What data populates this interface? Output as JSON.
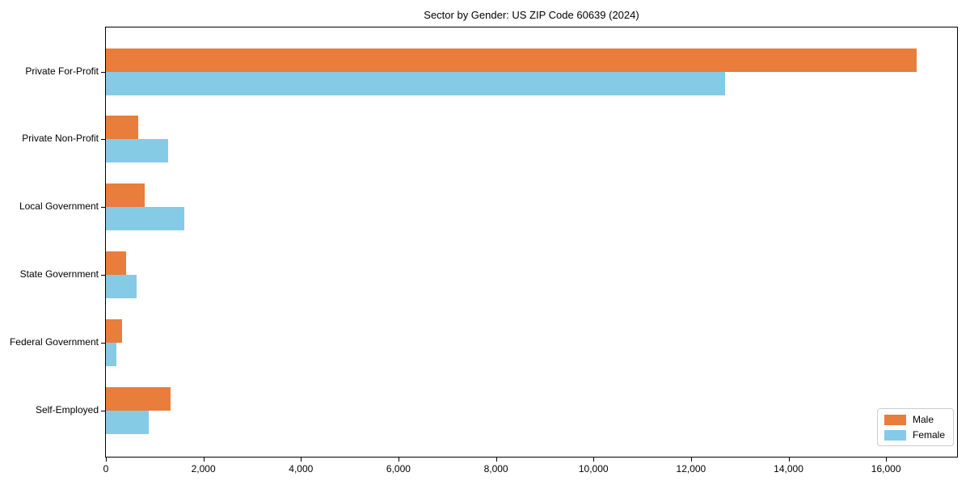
{
  "chart_data": {
    "type": "bar",
    "orientation": "horizontal",
    "title": "Sector by Gender: US ZIP Code 60639 (2024)",
    "categories": [
      "Private For-Profit",
      "Private Non-Profit",
      "Local Government",
      "State Government",
      "Federal Government",
      "Self-Employed"
    ],
    "series": [
      {
        "name": "Male",
        "color": "#E87D3C",
        "values": [
          16630,
          660,
          790,
          410,
          330,
          1320
        ]
      },
      {
        "name": "Female",
        "color": "#85CBE6",
        "values": [
          12690,
          1270,
          1600,
          630,
          215,
          880
        ]
      }
    ],
    "xlabel": "",
    "ylabel": "",
    "xlim": [
      0,
      17456
    ],
    "x_ticks": [
      0,
      2000,
      4000,
      6000,
      8000,
      10000,
      12000,
      14000,
      16000
    ],
    "x_tick_labels": [
      "0",
      "2,000",
      "4,000",
      "6,000",
      "8,000",
      "10,000",
      "12,000",
      "14,000",
      "16,000"
    ],
    "grid": false,
    "legend_position": "lower right",
    "colors": {
      "axis": "#000000",
      "text": "#000000",
      "legend_border": "#cccccc",
      "background": "#ffffff"
    }
  }
}
